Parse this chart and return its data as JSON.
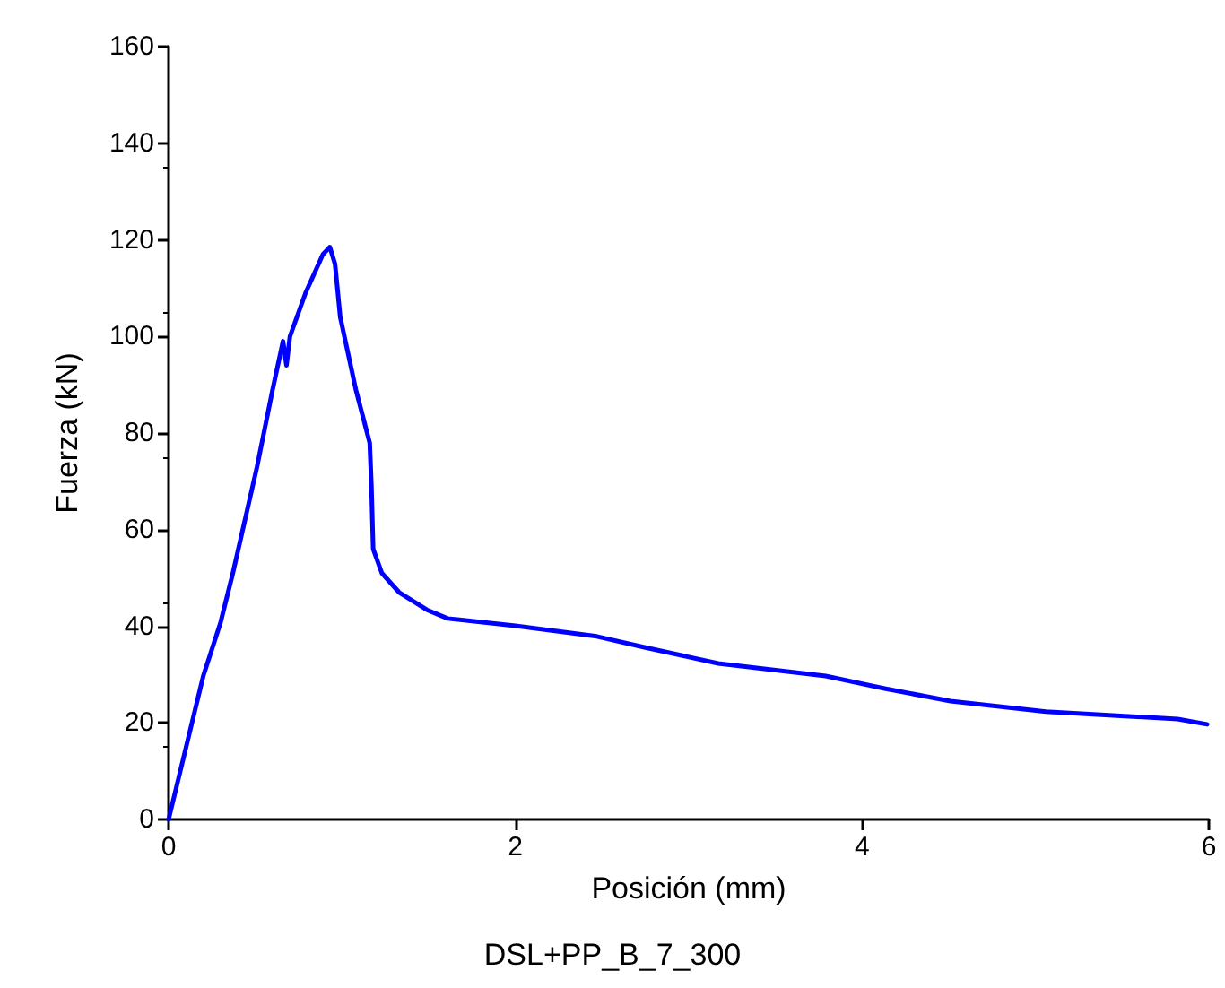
{
  "chart_data": {
    "type": "line",
    "xlabel": "Posición (mm)",
    "ylabel": "Fuerza (kN)",
    "annotations": [
      "DSL+PP_B_7_300"
    ],
    "x": [
      0,
      0.2,
      0.3,
      0.37,
      0.51,
      0.6,
      0.66,
      0.68,
      0.7,
      0.79,
      0.89,
      0.93,
      0.96,
      0.99,
      1.08,
      1.16,
      1.17,
      1.18,
      1.23,
      1.33,
      1.49,
      1.61,
      2.0,
      2.47,
      2.75,
      3.17,
      3.79,
      4.13,
      4.51,
      5.06,
      5.82,
      5.99
    ],
    "series": [
      {
        "color": "#0000ff",
        "values": [
          0,
          29.7,
          40.8,
          50.9,
          73,
          89,
          99,
          94,
          100,
          109,
          117,
          118.5,
          115,
          104,
          89,
          78,
          69,
          56,
          51,
          47,
          43.4,
          41.6,
          40.1,
          37.9,
          35.6,
          32.3,
          29.7,
          27.1,
          24.5,
          22.3,
          20.8,
          19.7
        ]
      }
    ],
    "xlim": [
      0,
      6
    ],
    "xticks": [
      0,
      2,
      4,
      6
    ],
    "ylim": [
      0,
      160
    ],
    "yticks": [
      0,
      20,
      40,
      60,
      80,
      100,
      120,
      140,
      160
    ],
    "grid": false,
    "marker": "none",
    "line_style": "solid"
  }
}
